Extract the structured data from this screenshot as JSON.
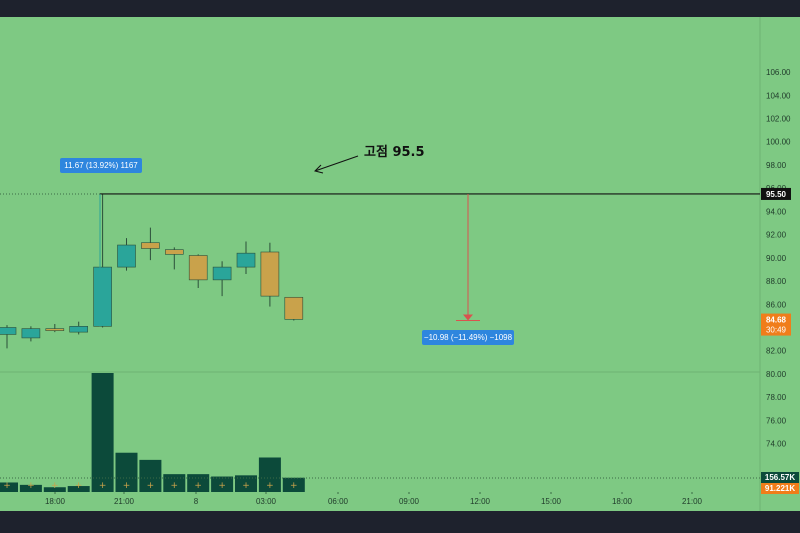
{
  "chart_data": {
    "type": "candlestick",
    "y_ticks": [
      "106.00",
      "104.00",
      "102.00",
      "100.00",
      "98.00",
      "96.00",
      "94.00",
      "92.00",
      "90.00",
      "88.00",
      "86.00",
      "84.00",
      "82.00",
      "80.00",
      "78.00",
      "76.00",
      "74.00"
    ],
    "x_ticks": [
      "18:00",
      "21:00",
      "8",
      "03:00",
      "06:00",
      "09:00",
      "12:00",
      "15:00",
      "18:00",
      "21:00"
    ],
    "ylim": [
      72.5,
      108.5
    ],
    "candles": [
      {
        "o": 83.4,
        "h": 84.2,
        "l": 82.2,
        "c": 84.0
      },
      {
        "o": 83.1,
        "h": 84.1,
        "l": 82.8,
        "c": 83.9
      },
      {
        "o": 83.9,
        "h": 84.3,
        "l": 83.6,
        "c": 83.8
      },
      {
        "o": 83.6,
        "h": 84.5,
        "l": 83.4,
        "c": 84.1
      },
      {
        "o": 84.1,
        "h": 95.5,
        "l": 84.0,
        "c": 89.2
      },
      {
        "o": 89.2,
        "h": 91.7,
        "l": 88.9,
        "c": 91.1
      },
      {
        "o": 91.3,
        "h": 92.6,
        "l": 89.8,
        "c": 90.8
      },
      {
        "o": 90.7,
        "h": 90.9,
        "l": 89.0,
        "c": 90.3
      },
      {
        "o": 90.2,
        "h": 90.3,
        "l": 87.4,
        "c": 88.1
      },
      {
        "o": 88.1,
        "h": 89.7,
        "l": 86.7,
        "c": 89.2
      },
      {
        "o": 89.2,
        "h": 91.4,
        "l": 88.6,
        "c": 90.4
      },
      {
        "o": 90.5,
        "h": 91.3,
        "l": 85.8,
        "c": 86.7
      },
      {
        "o": 86.6,
        "h": 86.6,
        "l": 84.6,
        "c": 84.7
      }
    ],
    "volume": [
      0.08,
      0.06,
      0.04,
      0.05,
      1.0,
      0.33,
      0.27,
      0.15,
      0.15,
      0.13,
      0.14,
      0.29,
      0.12
    ],
    "resistance_level": 95.5,
    "price_tags": {
      "level": "95.50",
      "last_price": "84.68",
      "countdown": "30:49",
      "volume_high": "156.57K",
      "volume_low": "91.221K"
    },
    "measure_up": "11.67 (13.92%) 1167",
    "measure_down": "−10.98 (−11.49%) −1098",
    "annotation": "고점 95.5",
    "colors": {
      "background": "#7ec983",
      "up": "#2aa59a",
      "down": "#c9a24b",
      "volume": "#0c4a3a",
      "label_blue": "#2e86de",
      "last_price": "#f07d1a",
      "measure_line": "#d9534f"
    }
  }
}
